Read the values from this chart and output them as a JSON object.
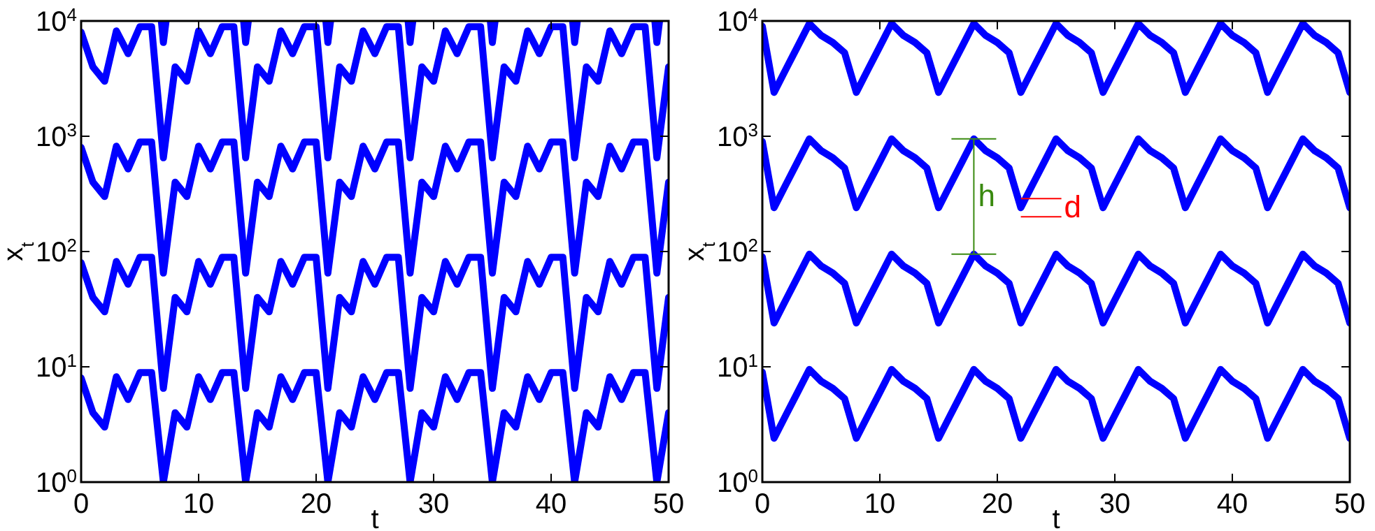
{
  "chart_data": [
    {
      "type": "line",
      "xlabel": "t",
      "ylabel": "x$_{t}$",
      "log": "y",
      "xlim": [
        0,
        50
      ],
      "ylim": [
        1,
        10000
      ],
      "xticks": [
        0,
        10,
        20,
        30,
        40,
        50
      ],
      "yticks": [
        {
          "value": 1,
          "label": "10$^{0}$"
        },
        {
          "value": 10,
          "label": "10$^{1}$"
        },
        {
          "value": 100,
          "label": "10$^{2}$"
        },
        {
          "value": 1000,
          "label": "10$^{3}$"
        },
        {
          "value": 10000,
          "label": "10$^{4}$"
        }
      ],
      "x": [
        0,
        1,
        2,
        3,
        4,
        5,
        6,
        7,
        8,
        9,
        10,
        11,
        12,
        13,
        14,
        15,
        16,
        17,
        18,
        19,
        20,
        21,
        22,
        23,
        24,
        25,
        26,
        27,
        28,
        29,
        30,
        31,
        32,
        33,
        34,
        35,
        36,
        37,
        38,
        39,
        40,
        41,
        42,
        43,
        44,
        45,
        46,
        47,
        48,
        49,
        50
      ],
      "series": [
        {
          "color": "#0000ff",
          "values": [
            8,
            4,
            3,
            8.2,
            5.2,
            8.9,
            8.9,
            1,
            4,
            3,
            8.2,
            5.2,
            8.9,
            8.9,
            1,
            4,
            3,
            8.2,
            5.2,
            8.9,
            8.9,
            1,
            4,
            3,
            8.2,
            5.2,
            8.9,
            8.9,
            1,
            4,
            3,
            8.2,
            5.2,
            8.9,
            8.9,
            1,
            4,
            3,
            8.2,
            5.2,
            8.9,
            8.9,
            1,
            4,
            3,
            8.2,
            5.2,
            8.9,
            8.9,
            1,
            4
          ]
        },
        {
          "color": "#0000ff",
          "values": [
            80,
            40,
            30,
            82,
            52,
            89,
            89,
            6.5,
            40,
            30,
            82,
            52,
            89,
            89,
            6.5,
            40,
            30,
            82,
            52,
            89,
            89,
            6.5,
            40,
            30,
            82,
            52,
            89,
            89,
            6.5,
            40,
            30,
            82,
            52,
            89,
            89,
            6.5,
            40,
            30,
            82,
            52,
            89,
            89,
            6.5,
            40,
            30,
            82,
            52,
            89,
            89,
            6.5,
            40
          ]
        },
        {
          "color": "#0000ff",
          "values": [
            800,
            400,
            300,
            820,
            520,
            890,
            890,
            65,
            400,
            300,
            820,
            520,
            890,
            890,
            65,
            400,
            300,
            820,
            520,
            890,
            890,
            65,
            400,
            300,
            820,
            520,
            890,
            890,
            65,
            400,
            300,
            820,
            520,
            890,
            890,
            65,
            400,
            300,
            820,
            520,
            890,
            890,
            65,
            400,
            300,
            820,
            520,
            890,
            890,
            65,
            400
          ]
        },
        {
          "color": "#0000ff",
          "values": [
            8000,
            4000,
            3000,
            8200,
            5200,
            8900,
            8900,
            650,
            4000,
            3000,
            8200,
            5200,
            8900,
            8900,
            650,
            4000,
            3000,
            8200,
            5200,
            8900,
            8900,
            650,
            4000,
            3000,
            8200,
            5200,
            8900,
            8900,
            650,
            4000,
            3000,
            8200,
            5200,
            8900,
            8900,
            650,
            4000,
            3000,
            8200,
            5200,
            8900,
            8900,
            650,
            4000,
            3000,
            8200,
            5200,
            8900,
            8900,
            650,
            4000
          ]
        },
        {
          "color": "#0000ff",
          "x": [
            6.83,
            7,
            7.23,
            7.5,
            13.83,
            14,
            14.23,
            14.5,
            20.83,
            21,
            21.23,
            21.5,
            27.83,
            28,
            28.23,
            28.5,
            34.83,
            35,
            35.23,
            35.5,
            41.83,
            42,
            42.23,
            42.5,
            48.83,
            49,
            49.23
          ],
          "values": [
            10000,
            6500,
            10000,
            null,
            10000,
            6500,
            10000,
            null,
            10000,
            6500,
            10000,
            null,
            10000,
            6500,
            10000,
            null,
            10000,
            6500,
            10000,
            null,
            10000,
            6500,
            10000,
            null,
            10000,
            6500,
            10000
          ]
        }
      ]
    },
    {
      "type": "line",
      "xlabel": "t",
      "ylabel": "x$_{t}$",
      "log": "y",
      "xlim": [
        0,
        50
      ],
      "ylim": [
        1,
        10000
      ],
      "xticks": [
        0,
        10,
        20,
        30,
        40,
        50
      ],
      "yticks": [
        {
          "value": 1,
          "label": "10$^{0}$"
        },
        {
          "value": 10,
          "label": "10$^{1}$"
        },
        {
          "value": 100,
          "label": "10$^{2}$"
        },
        {
          "value": 1000,
          "label": "10$^{3}$"
        },
        {
          "value": 10000,
          "label": "10$^{4}$"
        }
      ],
      "x": [
        0,
        1,
        2,
        3,
        4,
        5,
        6,
        7,
        8,
        9,
        10,
        11,
        12,
        13,
        14,
        15,
        16,
        17,
        18,
        19,
        20,
        21,
        22,
        23,
        24,
        25,
        26,
        27,
        28,
        29,
        30,
        31,
        32,
        33,
        34,
        35,
        36,
        37,
        38,
        39,
        40,
        41,
        42,
        43,
        44,
        45,
        46,
        47,
        48,
        49,
        50
      ],
      "series": [
        {
          "color": "#0000ff",
          "values": [
            9,
            2.4,
            3.8,
            6,
            9.5,
            7.5,
            6.5,
            5.3,
            2.4,
            3.8,
            6,
            9.5,
            7.5,
            6.5,
            5.3,
            2.4,
            3.8,
            6,
            9.5,
            7.5,
            6.5,
            5.3,
            2.4,
            3.8,
            6,
            9.5,
            7.5,
            6.5,
            5.3,
            2.4,
            3.8,
            6,
            9.5,
            7.5,
            6.5,
            5.3,
            2.4,
            3.8,
            6,
            9.5,
            7.5,
            6.5,
            5.3,
            2.4,
            3.8,
            6,
            9.5,
            7.5,
            6.5,
            5.3,
            2.4
          ]
        },
        {
          "color": "#0000ff",
          "values": [
            90,
            24,
            38,
            60,
            95,
            75,
            65,
            53,
            24,
            38,
            60,
            95,
            75,
            65,
            53,
            24,
            38,
            60,
            95,
            75,
            65,
            53,
            24,
            38,
            60,
            95,
            75,
            65,
            53,
            24,
            38,
            60,
            95,
            75,
            65,
            53,
            24,
            38,
            60,
            95,
            75,
            65,
            53,
            24,
            38,
            60,
            95,
            75,
            65,
            53,
            24
          ]
        },
        {
          "color": "#0000ff",
          "values": [
            900,
            240,
            380,
            600,
            950,
            750,
            650,
            530,
            240,
            380,
            600,
            950,
            750,
            650,
            530,
            240,
            380,
            600,
            950,
            750,
            650,
            530,
            240,
            380,
            600,
            950,
            750,
            650,
            530,
            240,
            380,
            600,
            950,
            750,
            650,
            530,
            240,
            380,
            600,
            950,
            750,
            650,
            530,
            240,
            380,
            600,
            950,
            750,
            650,
            530,
            240
          ]
        },
        {
          "color": "#0000ff",
          "values": [
            9000,
            2400,
            3800,
            6000,
            9500,
            7500,
            6500,
            5300,
            2400,
            3800,
            6000,
            9500,
            7500,
            6500,
            5300,
            2400,
            3800,
            6000,
            9500,
            7500,
            6500,
            5300,
            2400,
            3800,
            6000,
            9500,
            7500,
            6500,
            5300,
            2400,
            3800,
            6000,
            9500,
            7500,
            6500,
            5300,
            2400,
            3800,
            6000,
            9500,
            7500,
            6500,
            5300,
            2400,
            3800,
            6000,
            9500,
            7500,
            6500,
            5300,
            2400
          ]
        }
      ],
      "annotations": [
        {
          "text": "h",
          "x": 18,
          "y": 95
        },
        {
          "text": "d",
          "x": 22,
          "y": 240
        }
      ]
    }
  ]
}
